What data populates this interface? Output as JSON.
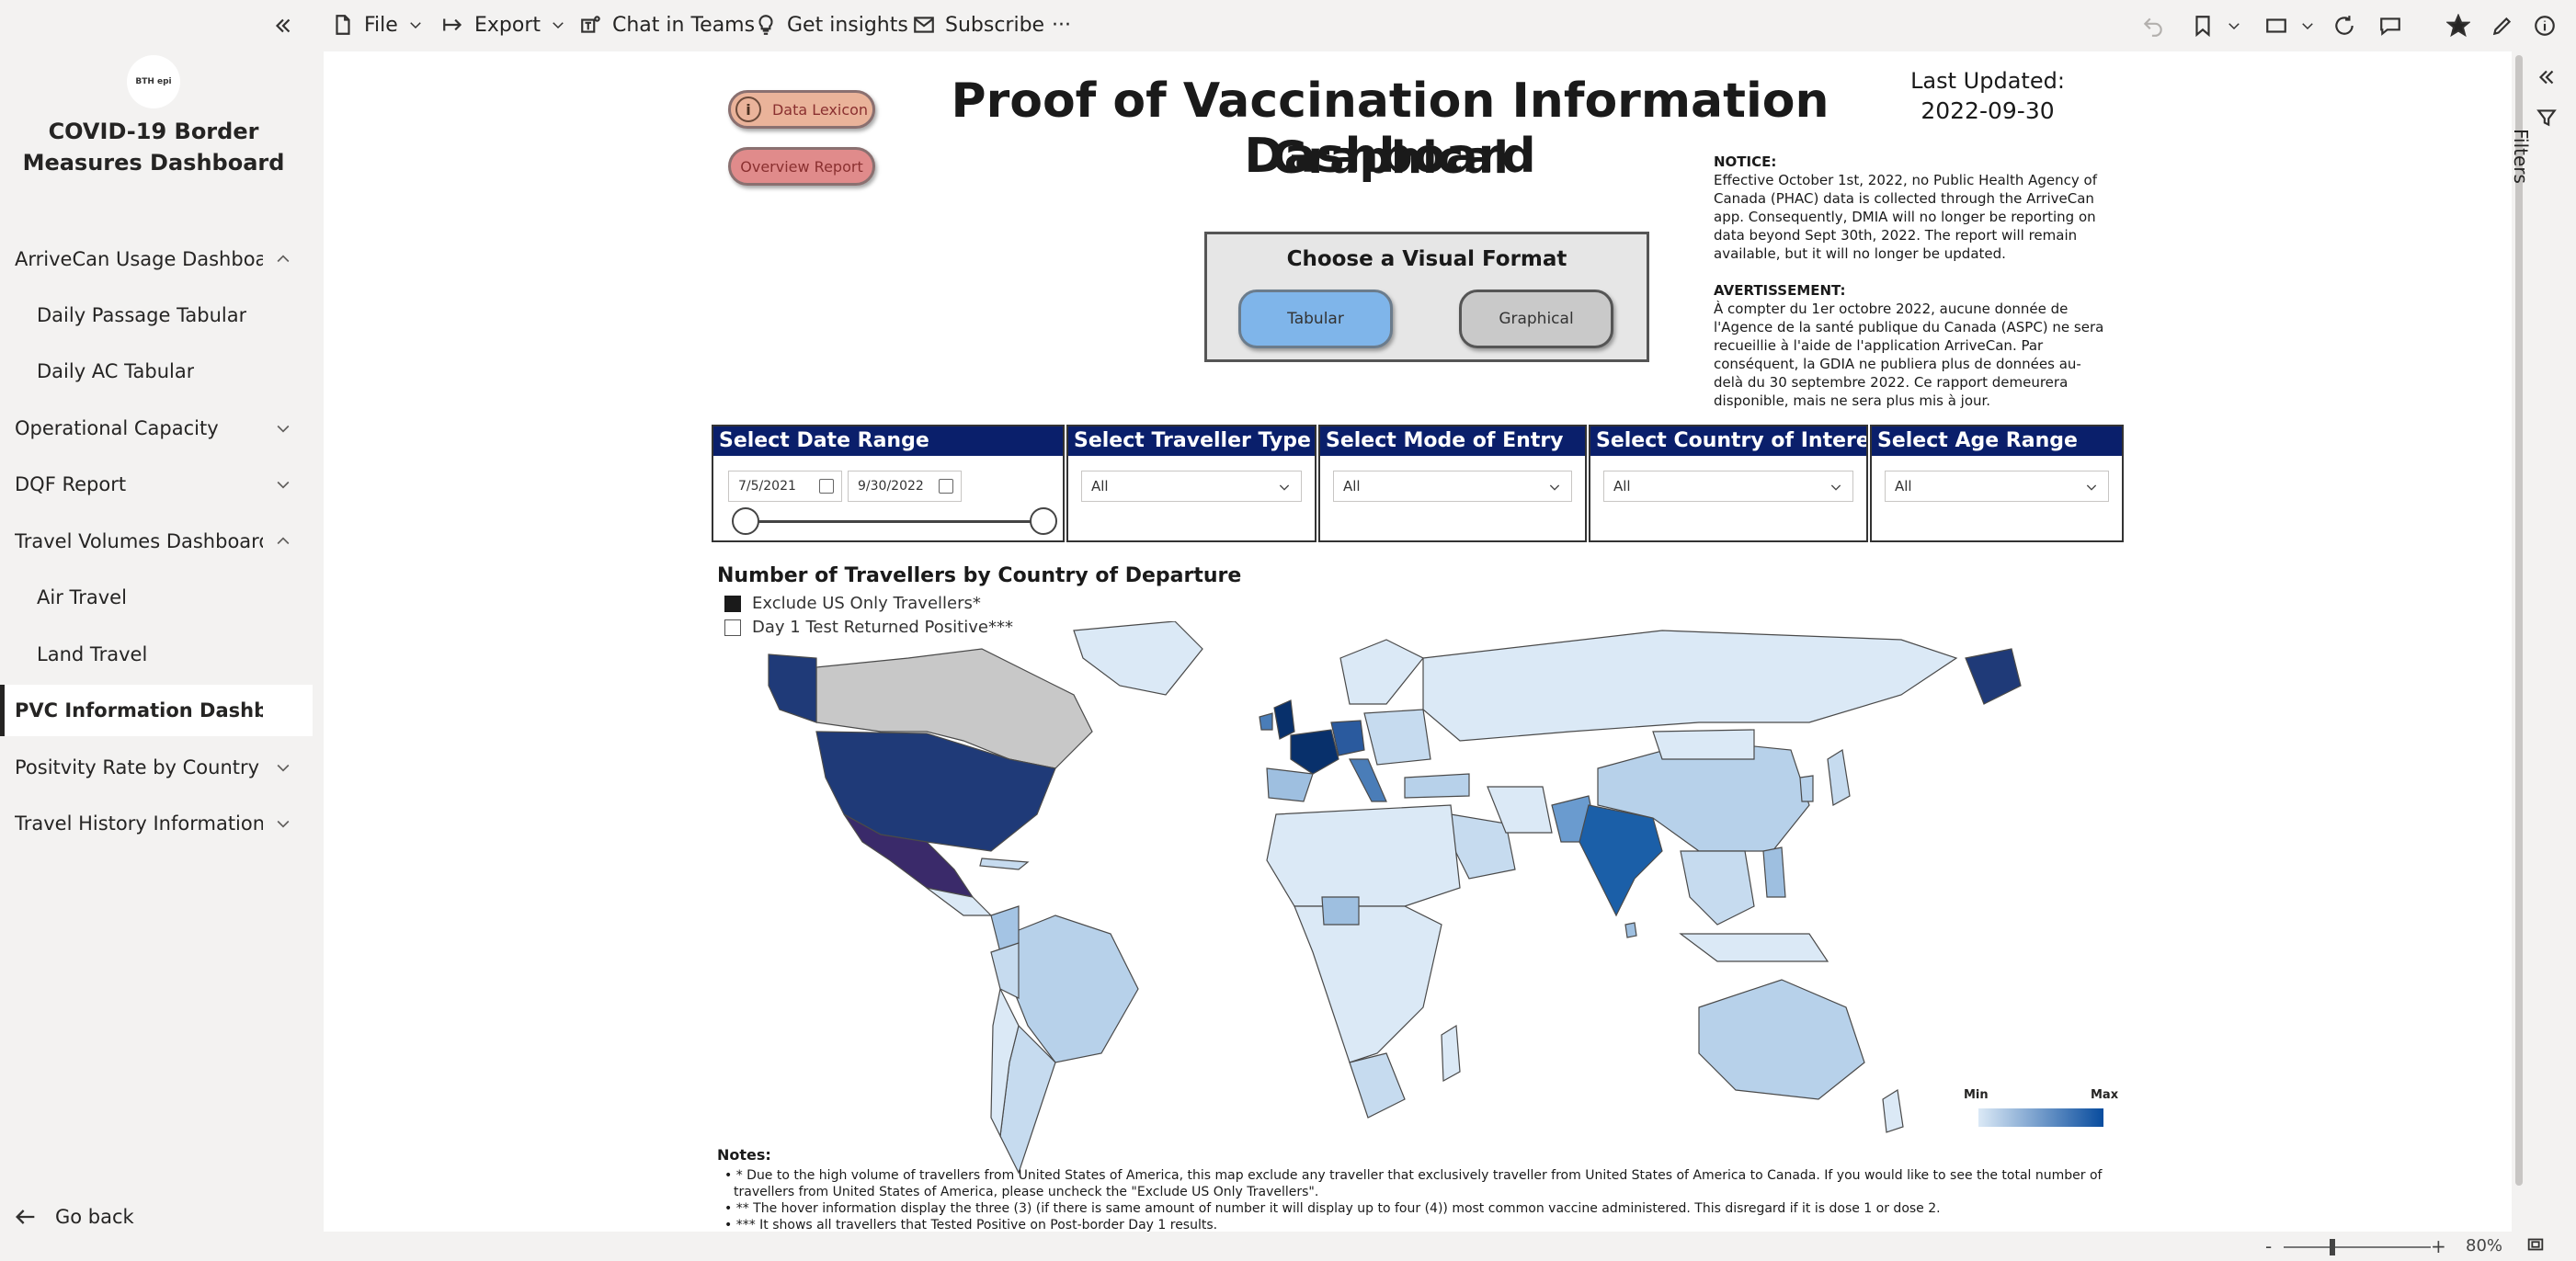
{
  "toolbar": {
    "file": "File",
    "export": "Export",
    "chat": "Chat in Teams",
    "insights": "Get insights",
    "subscribe": "Subscribe",
    "more": "···"
  },
  "nav": {
    "logo_text": "BTH epi",
    "app_title": "COVID-19 Border Measures Dashboard",
    "items": [
      {
        "label": "ArriveCan Usage Dashboard",
        "chevron": "up"
      },
      {
        "label": "Daily Passage Tabular",
        "sub": true
      },
      {
        "label": "Daily AC Tabular",
        "sub": true
      },
      {
        "label": "Operational Capacity",
        "chevron": "down"
      },
      {
        "label": "DQF Report",
        "chevron": "down"
      },
      {
        "label": "Travel Volumes Dashboard",
        "chevron": "up"
      },
      {
        "label": "Air Travel",
        "sub": true
      },
      {
        "label": "Land Travel",
        "sub": true
      },
      {
        "label": "PVC Information Dashboard",
        "active": true
      },
      {
        "label": "Positvity Rate by Country o...",
        "chevron": "down"
      },
      {
        "label": "Travel History Information ...",
        "chevron": "down"
      }
    ],
    "go_back": "Go back"
  },
  "report": {
    "data_lexicon": "Data Lexicon",
    "overview_report": "Overview Report",
    "title_line1": "Proof of Vaccination Information Dashboard",
    "title_line2": "Graphical",
    "last_updated_label": "Last Updated:",
    "last_updated_date": "2022-09-30",
    "notice_heading": "NOTICE:",
    "notice_text": "Effective October 1st, 2022, no Public Health Agency of Canada (PHAC) data is collected through the ArriveCan app. Consequently, DMIA will no longer be reporting on data beyond Sept 30th, 2022. The report will remain available, but it will no longer be updated.",
    "avert_heading": "AVERTISSEMENT:",
    "avert_text": "À compter du 1er octobre 2022, aucune donnée de l'Agence de la santé publique du Canada (ASPC) ne sera recueillie à l'aide de l'application ArriveCan. Par conséquent, la GDIA ne publiera plus de données au-delà du 30 septembre 2022. Ce rapport demeurera disponible, mais ne sera plus mis à jour.",
    "visual_format_title": "Choose a Visual Format",
    "tabular": "Tabular",
    "graphical": "Graphical"
  },
  "slicers": {
    "date_range": {
      "header": "Select Date Range",
      "start": "7/5/2021",
      "end": "9/30/2022"
    },
    "traveller_type": {
      "header": "Select Traveller Type",
      "value": "All"
    },
    "mode_of_entry": {
      "header": "Select Mode of Entry",
      "value": "All"
    },
    "country": {
      "header": "Select Country of Interest",
      "value": "All"
    },
    "age_range": {
      "header": "Select Age Range",
      "value": "All"
    }
  },
  "map": {
    "title": "Number of Travellers by Country of Departure",
    "cb_exclude_us": "Exclude US Only Travellers*",
    "cb_day1": "Day 1 Test Returned Positive***",
    "legend_min": "Min",
    "legend_max": "Max",
    "colors": {
      "min": "#dbe9f6",
      "max": "#084c9e",
      "none": "#c8c8c8",
      "top": "#3a2a6a"
    }
  },
  "notes": {
    "title": "Notes:",
    "n1": "• * Due to the high volume of travellers from United States of America, this map exclude any traveller that exclusively traveller from United States of America to Canada. If you would like to see the total number of travellers from United States of America, please uncheck the \"Exclude US Only Travellers\".",
    "n2": "• ** The hover information display the three (3) (if there is same amount of number it will display up to four (4)) most common vaccine administered. This disregard if it is dose 1 or dose 2.",
    "n3": "• *** It shows all travellers that Tested Positive on Post-border Day 1 results."
  },
  "rightpane": {
    "filters": "Filters"
  },
  "status": {
    "zoom": "80%"
  }
}
